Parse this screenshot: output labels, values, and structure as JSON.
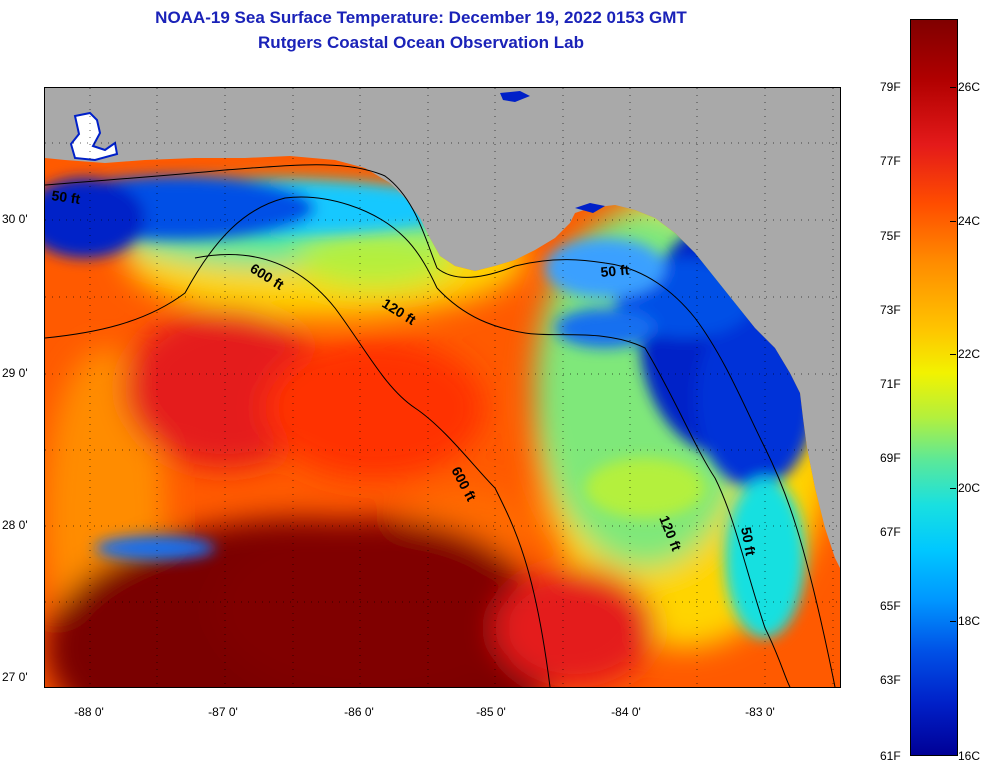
{
  "title": {
    "line1": "NOAA-19 Sea Surface Temperature:  December 19, 2022 0153 GMT",
    "line2": "Rutgers Coastal Ocean Observation Lab"
  },
  "axes": {
    "lat_labels": [
      "30 0'",
      "29 0'",
      "28 0'",
      "27 0'"
    ],
    "lon_labels": [
      "-88 0'",
      "-87 0'",
      "-86 0'",
      "-85 0'",
      "-84 0'",
      "-83 0'"
    ]
  },
  "contour_labels": {
    "a": "50 ft",
    "b": "600 ft",
    "c": "120 ft",
    "d": "50 ft",
    "e": "600 ft",
    "f": "120 ft",
    "g": "50 ft"
  },
  "colorbar": {
    "fahrenheit": [
      "79F",
      "77F",
      "75F",
      "73F",
      "71F",
      "69F",
      "67F",
      "65F",
      "63F",
      "61F"
    ],
    "celsius": [
      "26C",
      "24C",
      "22C",
      "20C",
      "18C",
      "16C"
    ]
  },
  "colors": {
    "title": "#1a22b8",
    "land": "#a9a9a9",
    "hot": "#800000",
    "cold": "#000096"
  }
}
